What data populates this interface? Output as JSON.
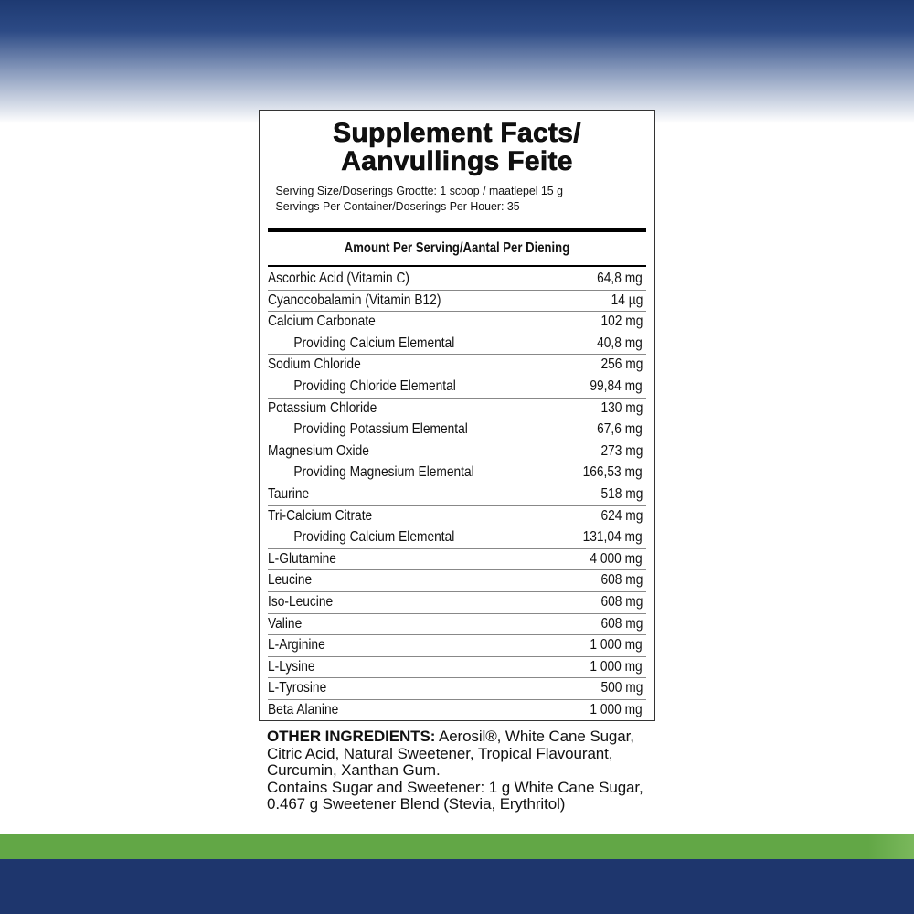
{
  "title_line1": "Supplement Facts/",
  "title_line2": "Aanvullings Feite",
  "serving_size": "Serving Size/Doserings Grootte: 1 scoop / maatlepel 15 g",
  "servings_per_container": "Servings Per Container/Doserings Per Houer: 35",
  "amount_header": "Amount Per Serving/Aantal Per Diening",
  "rows": [
    {
      "name": "Ascorbic Acid (Vitamin C)",
      "value": "64,8 mg",
      "sub": false,
      "last": true
    },
    {
      "name": "Cyanocobalamin (Vitamin B12)",
      "value": "14 µg",
      "sub": false,
      "last": true
    },
    {
      "name": "Calcium Carbonate",
      "value": "102 mg",
      "sub": false,
      "last": false
    },
    {
      "name": "Providing Calcium Elemental",
      "value": "40,8 mg",
      "sub": true,
      "last": true
    },
    {
      "name": "Sodium Chloride",
      "value": "256 mg",
      "sub": false,
      "last": false
    },
    {
      "name": "Providing Chloride Elemental",
      "value": "99,84 mg",
      "sub": true,
      "last": true
    },
    {
      "name": "Potassium Chloride",
      "value": "130 mg",
      "sub": false,
      "last": false
    },
    {
      "name": "Providing Potassium Elemental",
      "value": "67,6 mg",
      "sub": true,
      "last": true
    },
    {
      "name": "Magnesium Oxide",
      "value": "273 mg",
      "sub": false,
      "last": false
    },
    {
      "name": "Providing Magnesium Elemental",
      "value": "166,53 mg",
      "sub": true,
      "last": true
    },
    {
      "name": "Taurine",
      "value": "518 mg",
      "sub": false,
      "last": true
    },
    {
      "name": "Tri-Calcium Citrate",
      "value": "624 mg",
      "sub": false,
      "last": false
    },
    {
      "name": "Providing Calcium Elemental",
      "value": "131,04 mg",
      "sub": true,
      "last": true
    },
    {
      "name": "L-Glutamine",
      "value": "4 000 mg",
      "sub": false,
      "last": true
    },
    {
      "name": "Leucine",
      "value": "608 mg",
      "sub": false,
      "last": true
    },
    {
      "name": "Iso-Leucine",
      "value": "608 mg",
      "sub": false,
      "last": true
    },
    {
      "name": "Valine",
      "value": "608 mg",
      "sub": false,
      "last": true
    },
    {
      "name": "L-Arginine",
      "value": "1 000 mg",
      "sub": false,
      "last": true
    },
    {
      "name": "L-Lysine",
      "value": "1 000 mg",
      "sub": false,
      "last": true
    },
    {
      "name": "L-Tyrosine",
      "value": "500 mg",
      "sub": false,
      "last": true
    },
    {
      "name": "Beta Alanine",
      "value": "1 000 mg",
      "sub": false,
      "last": false
    }
  ],
  "other_label": "OTHER INGREDIENTS:",
  "other_text": " Aerosil®, White Cane Sugar, Citric Acid, Natural Sweetener, Tropical Flavourant, Curcumin, Xanthan Gum.",
  "contains_text": "Contains Sugar and Sweetener: 1 g White Cane Sugar, 0.467 g Sweetener Blend (Stevia, Erythritol)",
  "colors": {
    "navy": "#1e366d",
    "green": "#62a746"
  }
}
